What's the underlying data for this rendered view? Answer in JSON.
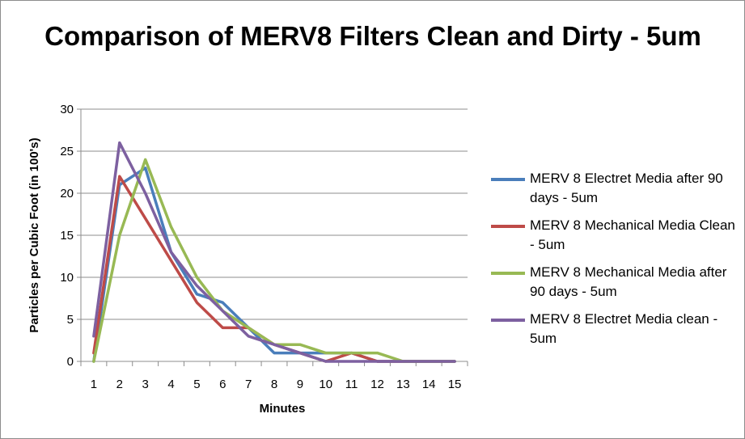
{
  "chart_data": {
    "type": "line",
    "title": "Comparison of MERV8 Filters Clean and Dirty - 5um",
    "xlabel": "Minutes",
    "ylabel": "Particles per Cubic Foot (in 100's)",
    "categories": [
      "1",
      "2",
      "3",
      "4",
      "5",
      "6",
      "7",
      "8",
      "9",
      "10",
      "11",
      "12",
      "13",
      "14",
      "15"
    ],
    "ylim": [
      0,
      30
    ],
    "yticks": [
      0,
      5,
      10,
      15,
      20,
      25,
      30
    ],
    "grid": true,
    "legend_position": "right",
    "series": [
      {
        "name": "MERV 8 Electret Media after 90 days - 5um",
        "color": "#4a7ebb",
        "values": [
          0,
          21,
          23,
          13,
          8,
          7,
          4,
          1,
          1,
          1,
          1,
          0,
          0,
          0,
          0
        ]
      },
      {
        "name": "MERV 8 Mechanical Media Clean - 5um",
        "color": "#be4b48",
        "values": [
          1,
          22,
          17,
          12,
          7,
          4,
          4,
          2,
          1,
          0,
          1,
          0,
          0,
          0,
          0
        ]
      },
      {
        "name": "MERV 8 Mechanical Media after 90 days - 5um",
        "color": "#98b954",
        "values": [
          0,
          15,
          24,
          16,
          10,
          6,
          4,
          2,
          2,
          1,
          1,
          1,
          0,
          0,
          0
        ]
      },
      {
        "name": "MERV 8 Electret Media clean - 5um",
        "color": "#7d60a0",
        "values": [
          3,
          26,
          20,
          13,
          9,
          6,
          3,
          2,
          1,
          0,
          0,
          0,
          0,
          0,
          0
        ]
      }
    ]
  }
}
